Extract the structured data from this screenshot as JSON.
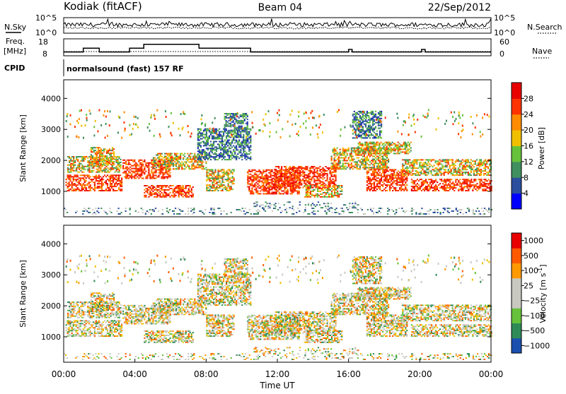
{
  "header": {
    "station": "Kodiak (fitACF)",
    "beam": "Beam 04",
    "date": "22/Sep/2012"
  },
  "left_labels": {
    "nsky": "N.Sky",
    "freq_line1": "Freq.",
    "freq_line2": "[MHz]",
    "cpid": "CPID"
  },
  "right_labels": {
    "nsearch": "N.Search",
    "nave": "Nave"
  },
  "mode_text": "normalsound (fast) 157 RF",
  "colors": {
    "power": [
      "#0000ff",
      "#2b4f9e",
      "#3f8f5f",
      "#66c23a",
      "#f0c000",
      "#ff8c00",
      "#ff3300",
      "#e80000"
    ],
    "velocity": [
      "#e80000",
      "#ff5a00",
      "#ff9900",
      "#c8c8c0",
      "#c8c8c0",
      "#66c23a",
      "#2e8b57",
      "#1a4fb0"
    ],
    "ground_scatter": "#c8c8c0"
  },
  "chart_data": [
    {
      "type": "line",
      "name": "noise",
      "left_ticks": [
        "10^5",
        "10^0"
      ],
      "right_ticks": [
        "10^5",
        "10^0"
      ],
      "series": [
        {
          "name": "N.Sky",
          "style": "solid"
        },
        {
          "name": "N.Search",
          "style": "dotted"
        }
      ]
    },
    {
      "type": "line",
      "name": "frequency",
      "left_ticks": [
        "18",
        "8"
      ],
      "right_ticks": [
        "60",
        "0"
      ],
      "series": [
        {
          "name": "Freq.",
          "style": "solid",
          "x": [
            0,
            1.0,
            1.1,
            1.6,
            2.0,
            3.5,
            3.7,
            4.2,
            4.5,
            6.5,
            7.6,
            10.5,
            13.0,
            15.9,
            16.0,
            16.2,
            18.0,
            20.1,
            20.3,
            24.0
          ],
          "y": [
            11,
            11,
            14,
            14,
            11,
            11,
            14,
            14,
            17,
            17,
            14,
            11,
            11,
            11,
            13,
            11,
            11,
            13,
            11,
            11
          ]
        },
        {
          "name": "Nave",
          "style": "dotted"
        }
      ]
    },
    {
      "type": "heatmap",
      "name": "power",
      "ylabel": "Slant Range [km]",
      "yticks": [
        1000,
        2000,
        3000,
        4000
      ],
      "ylim": [
        180,
        4600
      ],
      "xlim": [
        0,
        24
      ],
      "colorbar_label": "Power [dB]",
      "colorbar_ticks": [
        4,
        8,
        12,
        16,
        20,
        24,
        28
      ],
      "colorbar_range": [
        0,
        32
      ]
    },
    {
      "type": "heatmap",
      "name": "velocity",
      "ylabel": "Slant Range [km]",
      "yticks": [
        1000,
        2000,
        3000,
        4000
      ],
      "ylim": [
        180,
        4600
      ],
      "xlim": [
        0,
        24
      ],
      "xticks": [
        "00:00",
        "04:00",
        "08:00",
        "12:00",
        "16:00",
        "20:00",
        "00:00"
      ],
      "xlabel": "Time UT",
      "colorbar_label": "Velocity [m s",
      "colorbar_label_sup": "-1",
      "colorbar_label_end": "]",
      "colorbar_ticks": [
        "1000",
        "500",
        "100",
        "25",
        "−25",
        "−100",
        "−500",
        "−1000"
      ]
    }
  ]
}
